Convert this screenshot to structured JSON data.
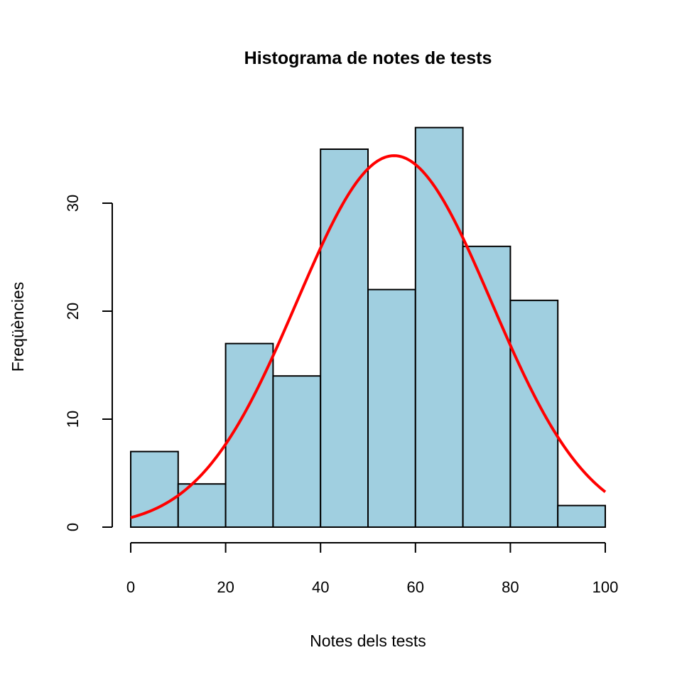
{
  "chart_data": {
    "type": "bar",
    "title": "Histograma de notes de tests",
    "xlabel": "Notes dels tests",
    "ylabel": "Freqüències",
    "bins": [
      {
        "from": 0,
        "to": 10,
        "count": 7
      },
      {
        "from": 10,
        "to": 20,
        "count": 4
      },
      {
        "from": 20,
        "to": 30,
        "count": 17
      },
      {
        "from": 30,
        "to": 40,
        "count": 14
      },
      {
        "from": 40,
        "to": 50,
        "count": 35
      },
      {
        "from": 50,
        "to": 60,
        "count": 22
      },
      {
        "from": 60,
        "to": 70,
        "count": 37
      },
      {
        "from": 70,
        "to": 80,
        "count": 26
      },
      {
        "from": 80,
        "to": 90,
        "count": 21
      },
      {
        "from": 90,
        "to": 100,
        "count": 2
      }
    ],
    "xlim": [
      0,
      100
    ],
    "ylim": [
      0,
      37
    ],
    "x_ticks": [
      0,
      20,
      40,
      60,
      80,
      100
    ],
    "y_ticks": [
      0,
      10,
      20,
      30
    ],
    "density_curve": {
      "type": "normal",
      "mean": 55.5,
      "sd": 20.5,
      "peak": 34.4,
      "x_range": [
        0,
        100
      ]
    },
    "colors": {
      "bar_fill": "#a0cfe0",
      "curve": "#ff0000"
    },
    "grid": false
  }
}
